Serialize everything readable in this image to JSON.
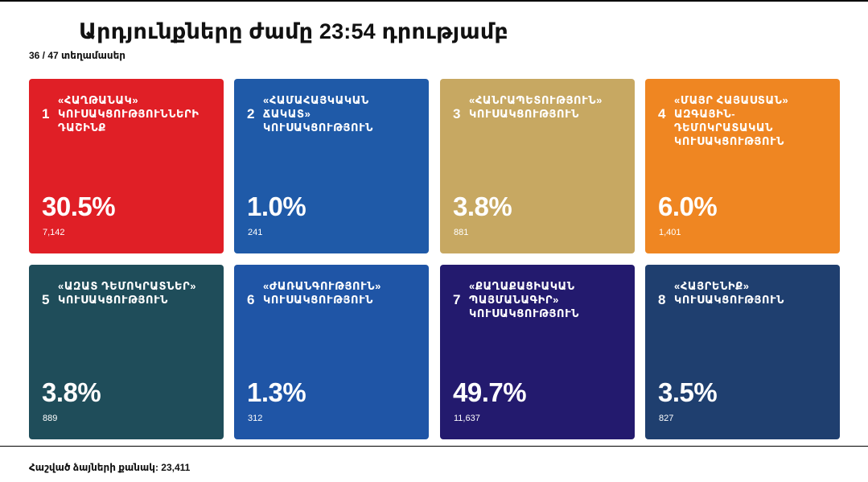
{
  "header": {
    "title": "Արդյունքները ժամը 23:54 դրությամբ",
    "precincts": "36 / 47 տեղամասեր"
  },
  "cards": [
    {
      "number": "1",
      "name": "«ՀԱՂԹԱՆԱԿ»\nԿՈՒՍԱԿՑՈՒԹՅՈՒՆՆԵՐԻ\nԴԱՇԻՆՔ",
      "percent": "30.5%",
      "votes": "7,142",
      "color": "#e01f26"
    },
    {
      "number": "2",
      "name": "«ՀԱՄԱՀԱՅԿԱԿԱՆ\nՃԱԿԱՏ»\nԿՈՒՍԱԿՑՈՒԹՅՈՒՆ",
      "percent": "1.0%",
      "votes": "241",
      "color": "#1f5aa8"
    },
    {
      "number": "3",
      "name": "«ՀԱՆՐԱՊԵՏՈՒԹՅՈՒՆ»\nԿՈՒՍԱԿՑՈՒԹՅՈՒՆ",
      "percent": "3.8%",
      "votes": "881",
      "color": "#c7a862"
    },
    {
      "number": "4",
      "name": "«ՄԱՅՐ ՀԱՅԱՍՏԱՆ»\nԱԶԳԱՅԻՆ-\nԴԵՄՈԿՐԱՏԱԿԱՆ\nԿՈՒՍԱԿՑՈՒԹՅՈՒՆ",
      "percent": "6.0%",
      "votes": "1,401",
      "color": "#ef8622"
    },
    {
      "number": "5",
      "name": "«ԱԶԱՏ ԴԵՄՈԿՐԱՏՆԵՐ»\nԿՈՒՍԱԿՑՈՒԹՅՈՒՆ",
      "percent": "3.8%",
      "votes": "889",
      "color": "#1f4d5a"
    },
    {
      "number": "6",
      "name": "«ԺԱՌԱՆԳՈՒԹՅՈՒՆ»\nԿՈՒՍԱԿՑՈՒԹՅՈՒՆ",
      "percent": "1.3%",
      "votes": "312",
      "color": "#1f55a6"
    },
    {
      "number": "7",
      "name": "«ՔԱՂԱՔԱՑԻԱԿԱՆ\nՊԱՅՄԱՆԱԳԻՐ»\nԿՈՒՍԱԿՑՈՒԹՅՈՒՆ",
      "percent": "49.7%",
      "votes": "11,637",
      "color": "#231a6e"
    },
    {
      "number": "8",
      "name": "«ՀԱՅՐԵՆԻՔ»\nԿՈՒՍԱԿՑՈՒԹՅՈՒՆ",
      "percent": "3.5%",
      "votes": "827",
      "color": "#1f3f6f"
    }
  ],
  "footer": {
    "total": "Հաշված ձայների քանակ: 23,411"
  }
}
